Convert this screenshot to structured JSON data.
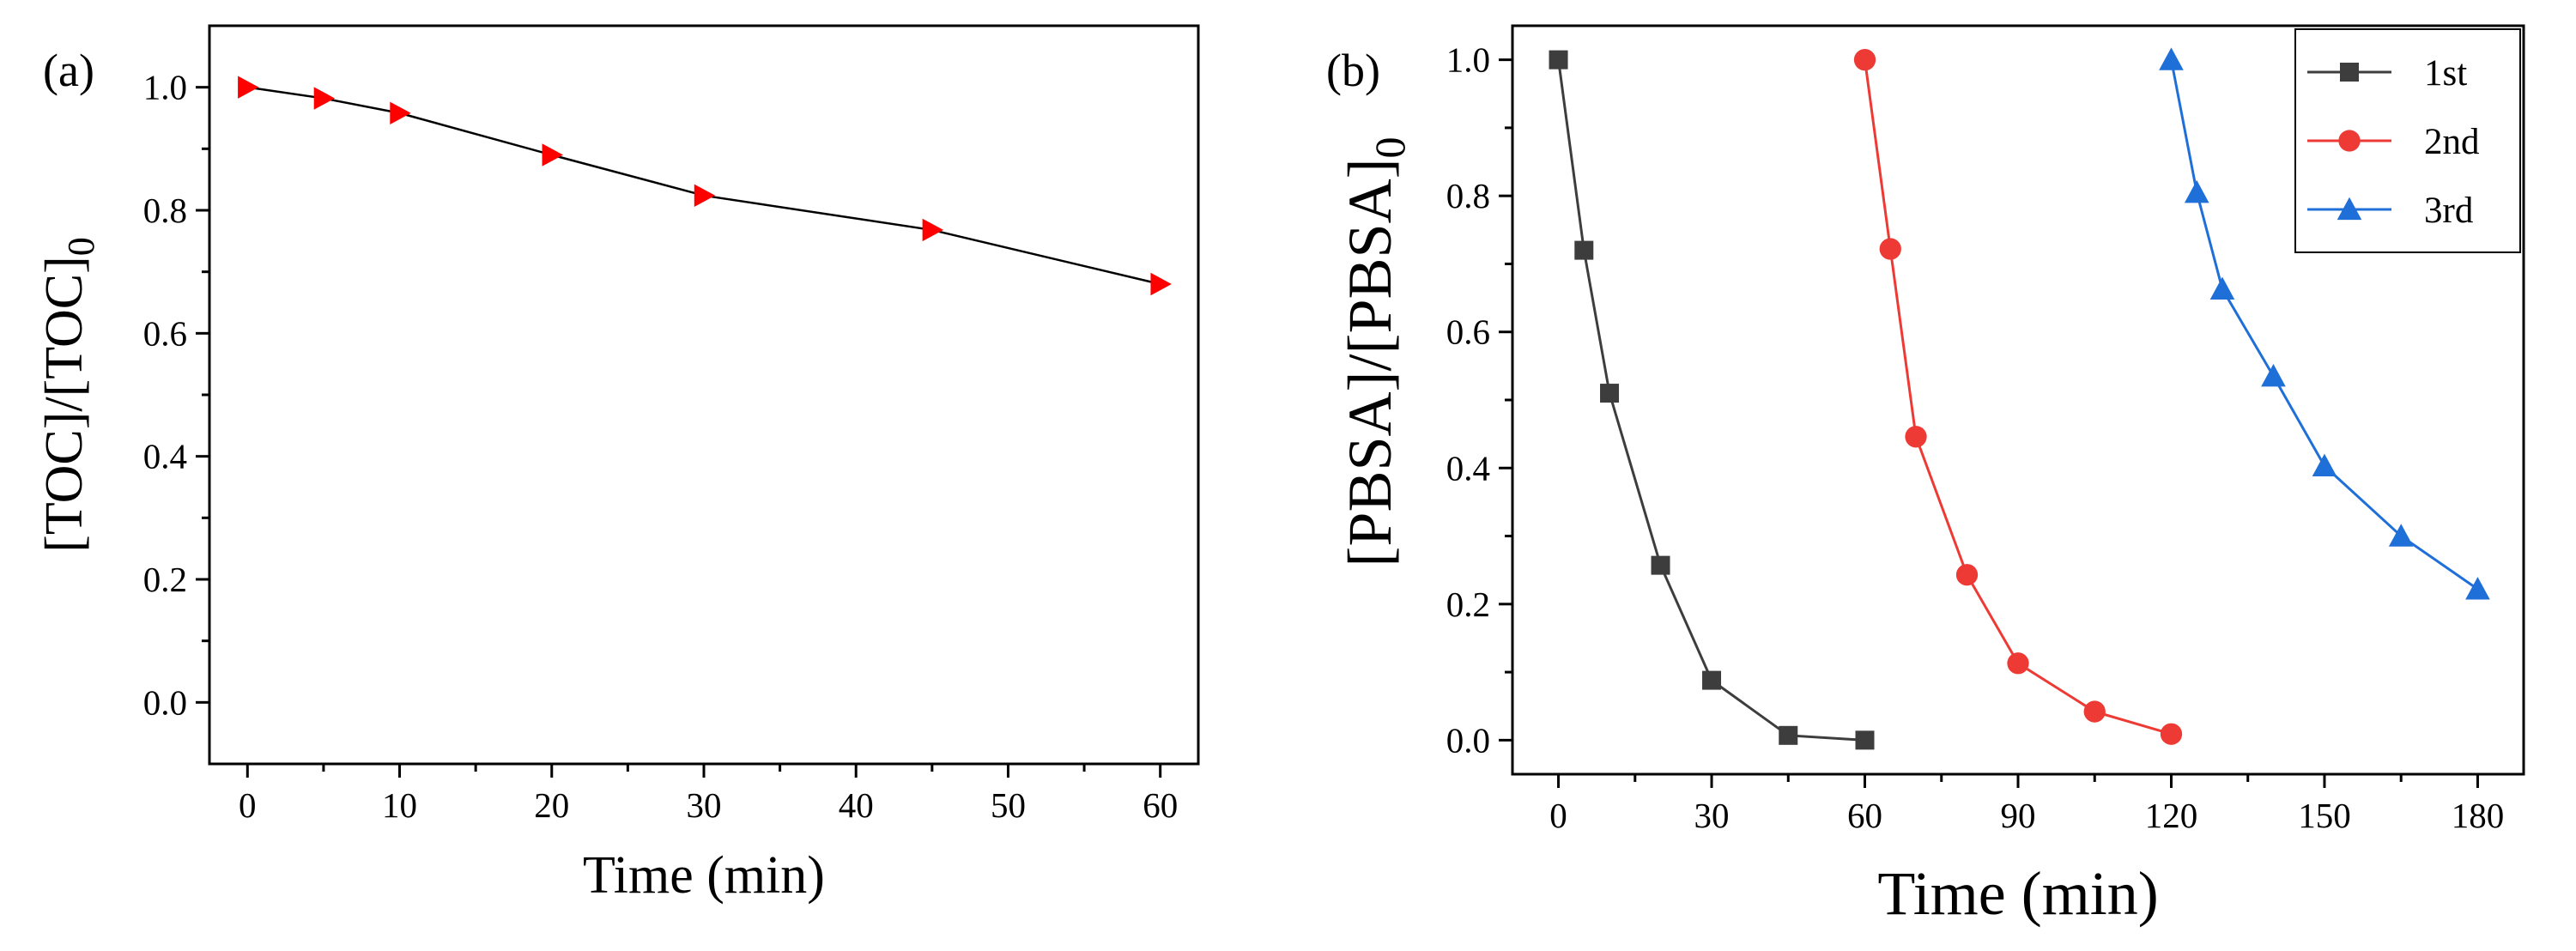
{
  "chart_data": [
    {
      "type": "line",
      "panel_label": "(a)",
      "xlabel": "Time (min)",
      "ylabel_main": "[TOC]/[TOC]",
      "ylabel_sub": "0",
      "xlim": [
        -2.5,
        62.5
      ],
      "ylim": [
        -0.1,
        1.1
      ],
      "xticks": [
        0,
        10,
        20,
        30,
        40,
        50,
        60
      ],
      "yticks": [
        0.0,
        0.2,
        0.4,
        0.6,
        0.8,
        1.0
      ],
      "ytick_labels": [
        "0.0",
        "0.2",
        "0.4",
        "0.6",
        "0.8",
        "1.0"
      ],
      "legend": "none",
      "series": [
        {
          "name": "TOC",
          "line_color": "#000000",
          "marker": "triangle-right",
          "marker_color": "#ff0000",
          "x": [
            0,
            5,
            10,
            20,
            30,
            45,
            60
          ],
          "y": [
            1.0,
            0.982,
            0.958,
            0.89,
            0.824,
            0.768,
            0.68
          ]
        }
      ]
    },
    {
      "type": "line",
      "panel_label": "(b)",
      "xlabel": "Time (min)",
      "ylabel_main": "[PBSA]/[PBSA]",
      "ylabel_sub": "0",
      "xlim": [
        -9,
        189
      ],
      "ylim": [
        -0.05,
        1.05
      ],
      "xticks": [
        0,
        30,
        60,
        90,
        120,
        150,
        180
      ],
      "yticks": [
        0.0,
        0.2,
        0.4,
        0.6,
        0.8,
        1.0
      ],
      "ytick_labels": [
        "0.0",
        "0.2",
        "0.4",
        "0.6",
        "0.8",
        "1.0"
      ],
      "legend": "top-right",
      "series": [
        {
          "name": "1st",
          "color": "#3d3d3d",
          "marker": "square",
          "x": [
            0,
            5,
            10,
            20,
            30,
            45,
            60
          ],
          "y": [
            1.0,
            0.72,
            0.51,
            0.257,
            0.088,
            0.007,
            0.0
          ]
        },
        {
          "name": "2nd",
          "color": "#ee3a35",
          "marker": "circle",
          "x": [
            60,
            65,
            70,
            80,
            90,
            105,
            120
          ],
          "y": [
            1.0,
            0.722,
            0.446,
            0.243,
            0.113,
            0.042,
            0.009
          ]
        },
        {
          "name": "3rd",
          "color": "#1f6fd8",
          "marker": "triangle-up",
          "x": [
            120,
            125,
            130,
            140,
            150,
            165,
            180
          ],
          "y": [
            1.0,
            0.805,
            0.663,
            0.535,
            0.403,
            0.3,
            0.222
          ]
        }
      ]
    }
  ]
}
